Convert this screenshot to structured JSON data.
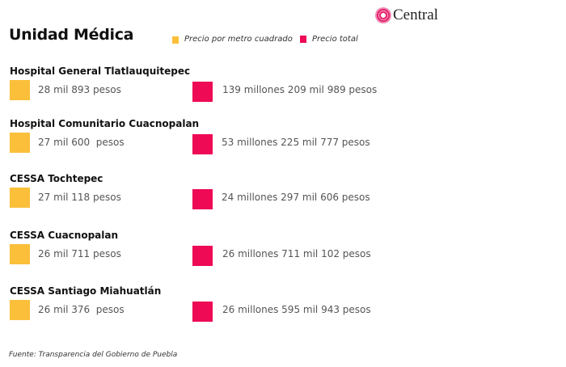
{
  "logo": {
    "text": "Central"
  },
  "title": "Unidad Médica",
  "legend": [
    {
      "label": "Precio por metro cuadrado",
      "color": "#fbbf3a"
    },
    {
      "label": "Precio total",
      "color": "#ee0a55"
    }
  ],
  "units": [
    {
      "name": "Hospital General Tlatlauquitepec",
      "price_m2": "28 mil 893 pesos",
      "total": "139 millones 209 mil 989 pesos"
    },
    {
      "name": "Hospital Comunitario Cuacnopalan",
      "price_m2": "27 mil 600  pesos",
      "total": "53 millones 225 mil 777 pesos"
    },
    {
      "name": "CESSA Tochtepec",
      "price_m2": "27 mil 118 pesos",
      "total": "24 millones 297 mil 606 pesos"
    },
    {
      "name": "CESSA Cuacnopalan",
      "price_m2": "26 mil 711 pesos",
      "total": "26 millones 711 mil 102 pesos"
    },
    {
      "name": "CESSA Santiago Miahuatlán",
      "price_m2": "26 mil 376  pesos",
      "total": "26 millones 595 mil 943 pesos"
    }
  ],
  "footer": "Fuente: Transparencia del Gobierno de Puebla"
}
